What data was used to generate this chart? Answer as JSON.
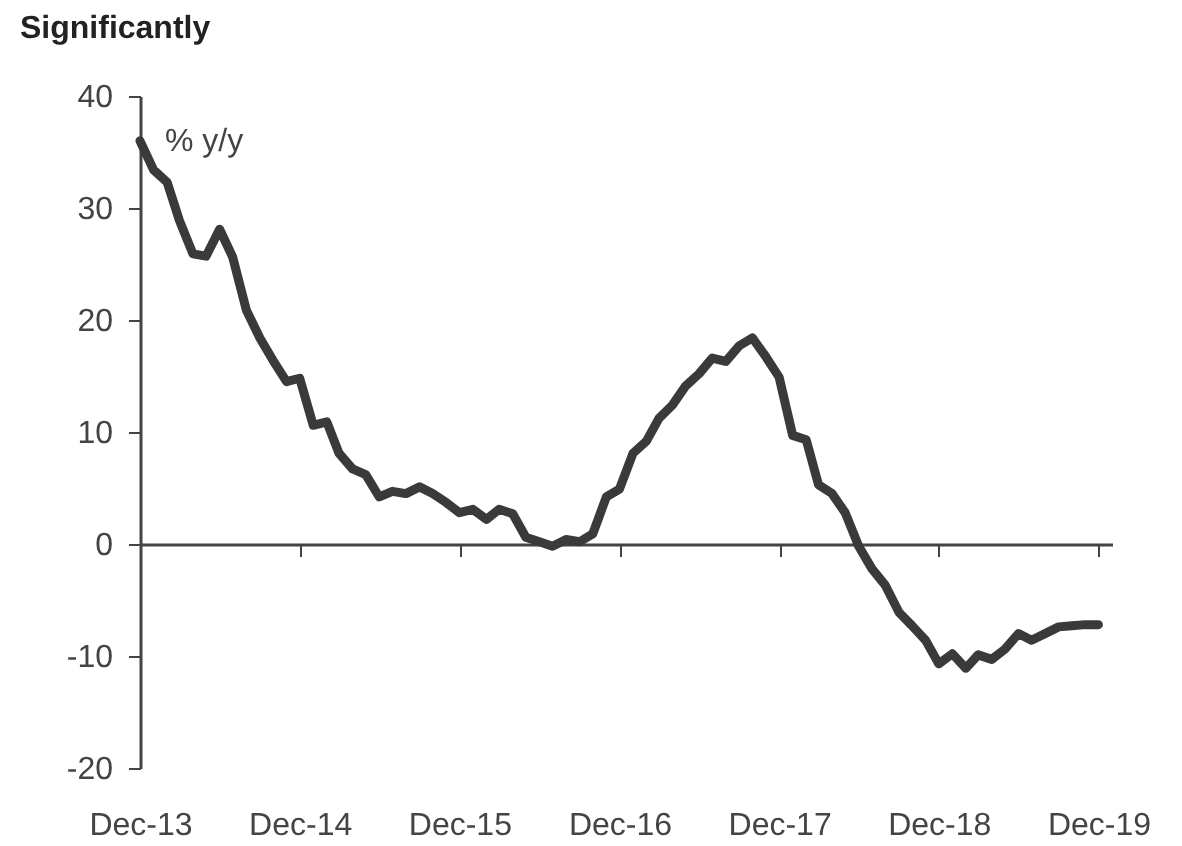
{
  "chart_data": {
    "type": "line",
    "title": "Significantly",
    "ylabel": "% y/y",
    "x": [
      "2013-12",
      "2014-01",
      "2014-02",
      "2014-03",
      "2014-04",
      "2014-05",
      "2014-06",
      "2014-07",
      "2014-08",
      "2014-09",
      "2014-10",
      "2014-11",
      "2014-12",
      "2015-01",
      "2015-02",
      "2015-03",
      "2015-04",
      "2015-05",
      "2015-06",
      "2015-07",
      "2015-08",
      "2015-09",
      "2015-10",
      "2015-11",
      "2015-12",
      "2016-01",
      "2016-02",
      "2016-03",
      "2016-04",
      "2016-05",
      "2016-06",
      "2016-07",
      "2016-08",
      "2016-09",
      "2016-10",
      "2016-11",
      "2016-12",
      "2017-01",
      "2017-02",
      "2017-03",
      "2017-04",
      "2017-05",
      "2017-06",
      "2017-07",
      "2017-08",
      "2017-09",
      "2017-10",
      "2017-11",
      "2017-12",
      "2018-01",
      "2018-02",
      "2018-03",
      "2018-04",
      "2018-05",
      "2018-06",
      "2018-07",
      "2018-08",
      "2018-09",
      "2018-10",
      "2018-11",
      "2018-12",
      "2019-01",
      "2019-02",
      "2019-03",
      "2019-04",
      "2019-05",
      "2019-06",
      "2019-07",
      "2019-08",
      "2019-09",
      "2019-10",
      "2019-11",
      "2019-12"
    ],
    "series": [
      {
        "color": "#3a3a3a",
        "values": [
          36.0,
          33.4,
          32.3,
          28.9,
          25.9,
          25.7,
          28.1,
          25.6,
          20.9,
          18.4,
          16.4,
          14.5,
          14.8,
          10.6,
          10.9,
          8.1,
          6.7,
          6.2,
          4.2,
          4.7,
          4.5,
          5.1,
          4.5,
          3.7,
          2.8,
          3.1,
          2.2,
          3.1,
          2.7,
          0.6,
          0.2,
          -0.2,
          0.4,
          0.2,
          0.9,
          4.2,
          4.9,
          8.1,
          9.2,
          11.2,
          12.4,
          14.1,
          15.2,
          16.6,
          16.3,
          17.7,
          18.4,
          16.7,
          14.9,
          9.7,
          9.3,
          5.3,
          4.5,
          2.8,
          -0.2,
          -2.2,
          -3.7,
          -6.1,
          -7.3,
          -8.6,
          -10.7,
          -9.8,
          -11.1,
          -9.9,
          -10.3,
          -9.4,
          -8.0,
          -8.6,
          -8.0,
          -7.4,
          -7.3,
          -7.2,
          -7.2
        ]
      }
    ],
    "xlim": [
      "2013-12",
      "2020-01"
    ],
    "xticks": [
      {
        "value": "2013-12",
        "label": "Dec-13"
      },
      {
        "value": "2014-12",
        "label": "Dec-14"
      },
      {
        "value": "2015-12",
        "label": "Dec-15"
      },
      {
        "value": "2016-12",
        "label": "Dec-16"
      },
      {
        "value": "2017-12",
        "label": "Dec-17"
      },
      {
        "value": "2018-12",
        "label": "Dec-18"
      },
      {
        "value": "2019-12",
        "label": "Dec-19"
      }
    ],
    "ylim": [
      -20,
      40
    ],
    "yticks": [
      -20,
      -10,
      0,
      10,
      20,
      30,
      40
    ],
    "line_style": "solid",
    "marker": "none"
  }
}
